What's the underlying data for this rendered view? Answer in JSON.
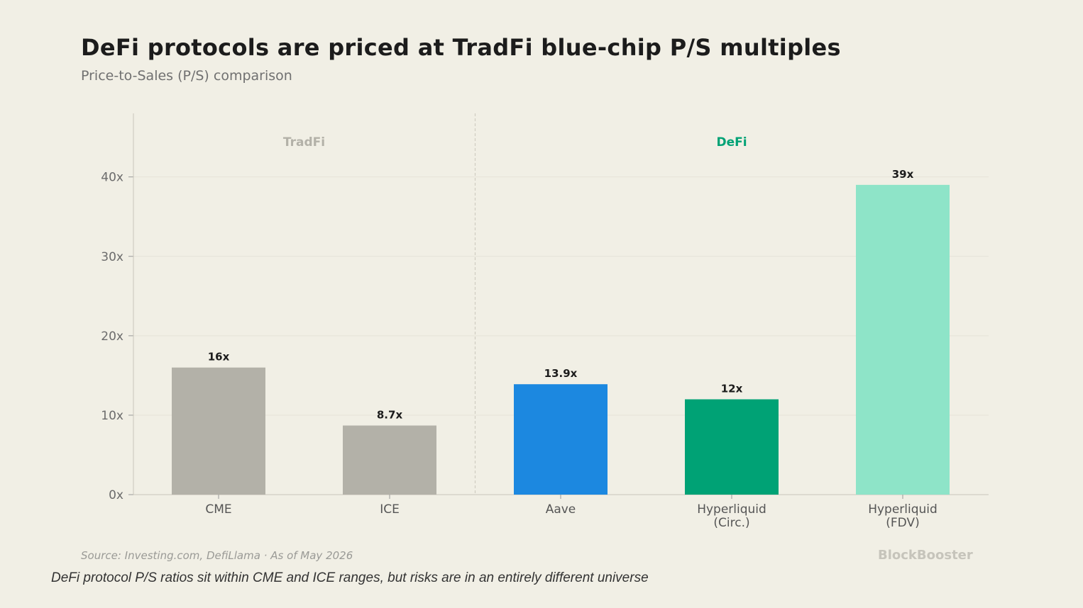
{
  "chart_data": {
    "type": "bar",
    "title": "DeFi protocols are priced at TradFi blue-chip P/S multiples",
    "subtitle": "Price-to-Sales (P/S) comparison",
    "categories": [
      "CME",
      "ICE",
      "Aave",
      "Hyperliquid\n(Circ.)",
      "Hyperliquid\n(FDV)"
    ],
    "values": [
      16,
      8.7,
      13.9,
      12,
      39
    ],
    "value_labels": [
      "16x",
      "8.7x",
      "13.9x",
      "12x",
      "39x"
    ],
    "bar_colors": [
      "#b3b1a8",
      "#b3b1a8",
      "#1c88e0",
      "#00a275",
      "#8ee4c8"
    ],
    "groups": [
      {
        "label": "TradFi",
        "color": "#b3b1a8",
        "categories": [
          "CME",
          "ICE"
        ]
      },
      {
        "label": "DeFi",
        "color": "#00a275",
        "categories": [
          "Aave",
          "Hyperliquid\n(Circ.)",
          "Hyperliquid\n(FDV)"
        ]
      }
    ],
    "y_ticks": [
      0,
      10,
      20,
      30,
      40
    ],
    "y_tick_labels": [
      "0x",
      "10x",
      "20x",
      "30x",
      "40x"
    ],
    "ylim": [
      0,
      48
    ],
    "grid": true,
    "xlabel": "",
    "ylabel": ""
  },
  "source": "Source: Investing.com, DefiLlama · As of May 2026",
  "brand": "BlockBooster",
  "caption": "DeFi protocol P/S ratios sit within CME and ICE ranges, but risks are in an entirely different universe"
}
